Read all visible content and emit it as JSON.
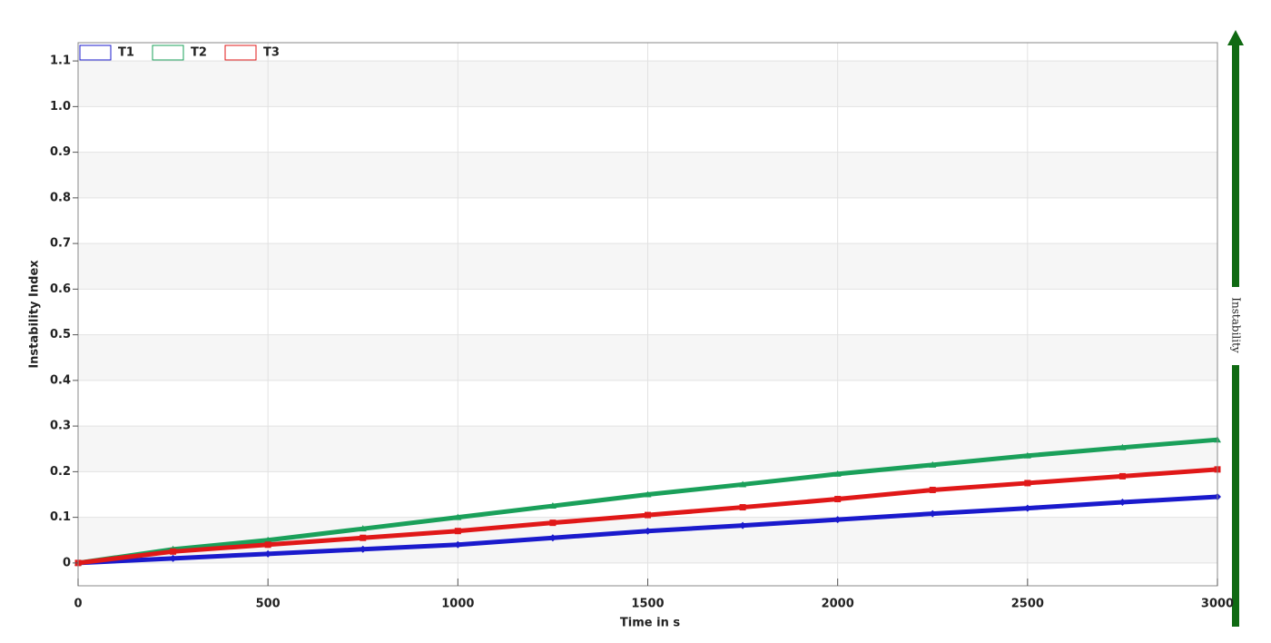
{
  "chart_data": {
    "type": "line",
    "x_label": "Time in s",
    "y_label": "Instability Index",
    "side_label": "Instability",
    "x": [
      0,
      250,
      500,
      750,
      1000,
      1250,
      1500,
      1750,
      2000,
      2250,
      2500,
      2750,
      3000
    ],
    "series": [
      {
        "name": "T1",
        "color": "#1a1acc",
        "marker": "diamond",
        "values": [
          0,
          0.01,
          0.02,
          0.03,
          0.04,
          0.055,
          0.07,
          0.082,
          0.095,
          0.108,
          0.12,
          0.133,
          0.145
        ]
      },
      {
        "name": "T2",
        "color": "#1aa05a",
        "marker": "triangle",
        "values": [
          0,
          0.03,
          0.05,
          0.075,
          0.1,
          0.125,
          0.15,
          0.172,
          0.195,
          0.215,
          0.235,
          0.253,
          0.27
        ]
      },
      {
        "name": "T3",
        "color": "#e01818",
        "marker": "square",
        "values": [
          0,
          0.025,
          0.04,
          0.055,
          0.07,
          0.088,
          0.105,
          0.122,
          0.14,
          0.16,
          0.175,
          0.19,
          0.205
        ]
      }
    ],
    "xlim": [
      0,
      3000
    ],
    "ylim": [
      -0.05,
      1.14
    ],
    "xticks": [
      0,
      500,
      1000,
      1500,
      2000,
      2500,
      3000
    ],
    "yticks": [
      0,
      0.1,
      0.2,
      0.3,
      0.4,
      0.5,
      0.6,
      0.7,
      0.8,
      0.9,
      {
        "value": 1,
        "label": "1.0"
      },
      1.1
    ],
    "grid": true
  }
}
